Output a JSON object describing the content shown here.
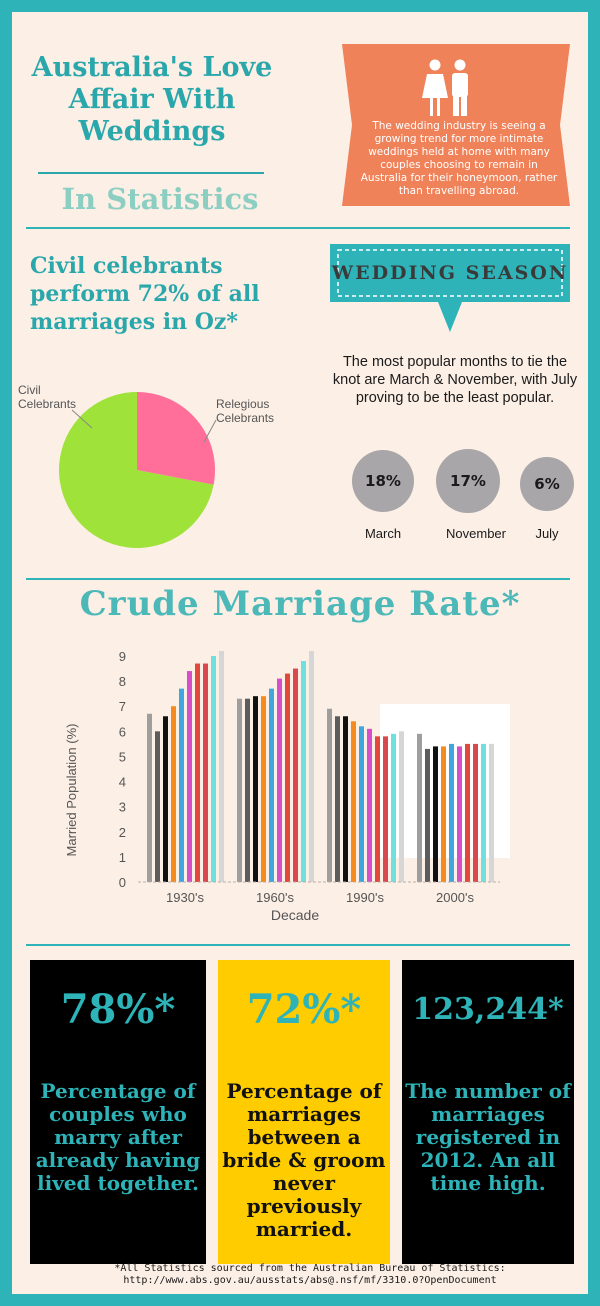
{
  "header": {
    "title": "Australia's Love Affair With Weddings",
    "subtitle": "In Statistics",
    "intro_text": "The wedding industry is seeing a growing trend for more intimate weddings held at home with many couples choosing to remain in Australia for their honeymoon, rather than travelling abroad.",
    "intro_color": "#f0825a"
  },
  "celebrants": {
    "headline": "Civil celebrants perform 72% of all marriages in Oz*",
    "pie": [
      {
        "label": "Civil Celebrants",
        "value": 72,
        "color": "#9fe23a"
      },
      {
        "label": "Relegious Celebrants",
        "value": 28,
        "color": "#ff6f9a"
      }
    ]
  },
  "season": {
    "title": "WEDDING SEASON",
    "description": "The most popular months to tie the knot are March & November, with July proving to be the least popular.",
    "months": [
      {
        "value": "18%",
        "label": "March"
      },
      {
        "value": "17%",
        "label": "November"
      },
      {
        "value": "6%",
        "label": "July"
      }
    ]
  },
  "chart_data": {
    "type": "bar",
    "title": "Crude Marriage Rate*",
    "xlabel": "Decade",
    "ylabel": "Married Population (%)",
    "ylim": [
      0,
      9
    ],
    "yticks": [
      "0",
      "1",
      "2",
      "3",
      "4",
      "5",
      "6",
      "7",
      "8",
      "9"
    ],
    "categories": [
      "1930's",
      "1960's",
      "1990's",
      "2000's"
    ],
    "groups": [
      [
        6.7,
        6.0,
        6.6,
        7.0,
        7.7,
        8.4,
        8.7,
        8.7,
        9.0,
        9.2
      ],
      [
        7.3,
        7.3,
        7.4,
        7.4,
        7.7,
        8.1,
        8.3,
        8.5,
        8.8,
        9.2
      ],
      [
        6.9,
        6.6,
        6.6,
        6.4,
        6.2,
        6.1,
        5.8,
        5.8,
        5.9,
        6.0
      ],
      [
        5.9,
        5.3,
        5.4,
        5.4,
        5.5,
        5.4,
        5.5,
        5.5,
        5.5,
        5.5
      ]
    ],
    "bar_colors": [
      "#9e9e9e",
      "#5c5c5c",
      "#111111",
      "#f58a1f",
      "#3fa6e0",
      "#d64fc8",
      "#e4483b",
      "#d9474f",
      "#6fe0dd",
      "#d6d6d6"
    ],
    "grid": false
  },
  "stats": [
    {
      "value": "78%*",
      "text": "Percentage of couples who marry after already having lived together.",
      "bg": "#000000",
      "fg": "#2db3b8",
      "text_color": "#2db3b8"
    },
    {
      "value": "72%*",
      "text": "Percentage of marriages between a bride & groom never previously married.",
      "bg": "#ffcc00",
      "fg": "#2db3b8",
      "text_color": "#111111"
    },
    {
      "value": "123,244*",
      "text": "The number of marriages registered in 2012. An all time high.",
      "bg": "#000000",
      "fg": "#2db3b8",
      "text_color": "#2db3b8"
    }
  ],
  "footer": {
    "line1": "*All Statistics sourced from the Australian Bureau of Statistics:",
    "line2": "http://www.abs.gov.au/ausstats/abs@.nsf/mf/3310.0?OpenDocument"
  }
}
